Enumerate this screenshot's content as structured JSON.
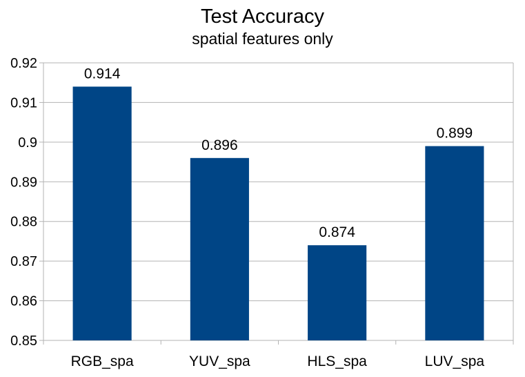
{
  "chart_data": {
    "type": "bar",
    "title": "Test Accuracy",
    "subtitle": "spatial features only",
    "categories": [
      "RGB_spa",
      "YUV_spa",
      "HLS_spa",
      "LUV_spa"
    ],
    "values": [
      0.914,
      0.896,
      0.874,
      0.899
    ],
    "data_labels": [
      "0.914",
      "0.896",
      "0.874",
      "0.899"
    ],
    "ylim": [
      0.85,
      0.92
    ],
    "yticks": [
      0.85,
      0.86,
      0.87,
      0.88,
      0.89,
      0.9,
      0.91,
      0.92
    ],
    "ytick_labels": [
      "0.85",
      "0.86",
      "0.87",
      "0.88",
      "0.89",
      "0.9",
      "0.91",
      "0.92"
    ],
    "grid": true,
    "legend": "none",
    "bar_color": "#004586",
    "grid_color": "#b3b3b3"
  }
}
